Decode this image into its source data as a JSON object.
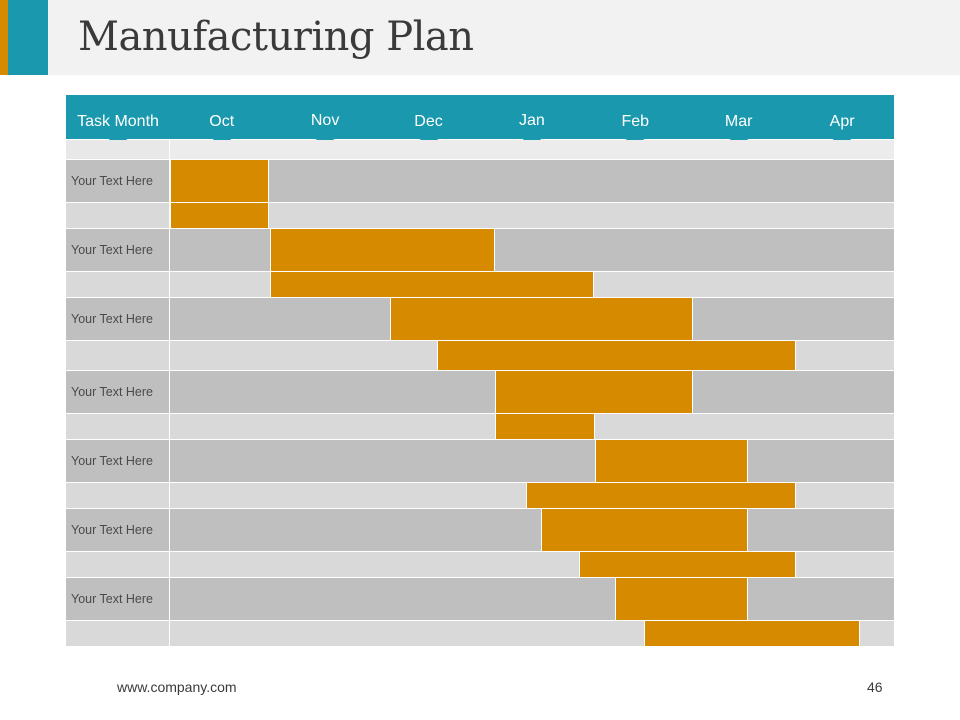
{
  "slide": {
    "title": "Manufacturing Plan",
    "footer_url": "www.company.com",
    "page_number": "46"
  },
  "colors": {
    "teal": "#1a98ad",
    "orange": "#d68a00",
    "row_dark": "#bfbfbf",
    "row_light": "#d9d9d9",
    "title_bg": "#f2f2f2"
  },
  "chart_data": {
    "type": "gantt",
    "title": "Manufacturing Plan",
    "header_label": "Task Month",
    "months": [
      "Oct",
      "Nov",
      "Dec",
      "Jan",
      "Feb",
      "Mar",
      "Apr"
    ],
    "month_range": [
      0,
      7
    ],
    "tasks": [
      {
        "label": "Your Text Here",
        "bars": [
          [
            0.0,
            0.96
          ],
          [
            0.0,
            0.96
          ]
        ]
      },
      {
        "label": "Your Text Here",
        "bars": [
          [
            0.97,
            3.14
          ],
          [
            0.97,
            4.1
          ]
        ]
      },
      {
        "label": "Your Text Here",
        "bars": [
          [
            2.13,
            5.06
          ],
          [
            2.58,
            6.05
          ]
        ]
      },
      {
        "label": "Your Text Here",
        "bars": [
          [
            3.14,
            5.06
          ],
          [
            3.14,
            4.11
          ]
        ]
      },
      {
        "label": "Your Text Here",
        "bars": [
          [
            4.11,
            5.59
          ],
          [
            3.44,
            6.05
          ]
        ]
      },
      {
        "label": "Your Text Here",
        "bars": [
          [
            3.59,
            5.59
          ],
          [
            3.95,
            6.05
          ]
        ]
      },
      {
        "label": "Your Text Here",
        "bars": [
          [
            4.3,
            5.59
          ],
          [
            4.58,
            6.67
          ]
        ]
      }
    ]
  }
}
